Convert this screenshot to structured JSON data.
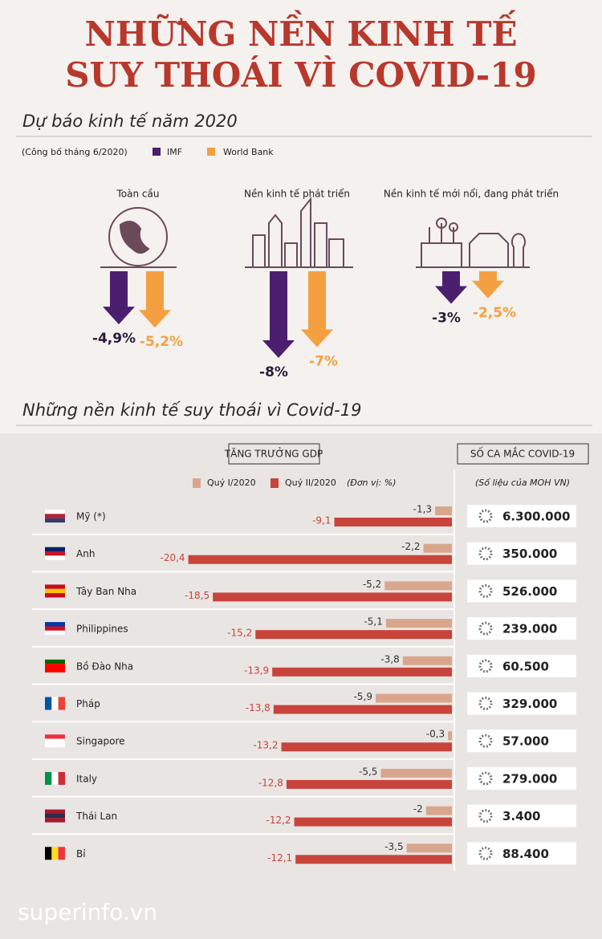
{
  "header": {
    "title_lines": [
      "NHỮNG NỀN KINH TẾ",
      "SUY THOÁI VÌ COVID-19"
    ]
  },
  "forecast": {
    "title": "Dự báo kinh tế năm 2020",
    "note": "(Công bố tháng 6/2020)",
    "legend": [
      {
        "name": "IMF",
        "color": "#4b1f6e"
      },
      {
        "name": "World Bank",
        "color": "#f5a040"
      }
    ],
    "groups": [
      {
        "label": "Toàn cầu",
        "values": [
          -4.9,
          -5.2
        ],
        "value_labels": [
          "-4,9%",
          "-5,2%"
        ]
      },
      {
        "label": "Nền kinh tế phát triển",
        "values": [
          -8,
          -7
        ],
        "value_labels": [
          "-8%",
          "-7%"
        ]
      },
      {
        "label": "Nền kinh tế mới nổi, đang phát triển",
        "values": [
          -3,
          -2.5
        ],
        "value_labels": [
          "-3%",
          "-2,5%"
        ]
      }
    ]
  },
  "chart_data": {
    "type": "bar",
    "orientation": "horizontal",
    "title": "Những nền kinh tế suy thoái vì Covid-19",
    "subtitle": "TĂNG TRƯỞNG GDP",
    "unit_note": "(Đơn vị: %)",
    "categories": [
      "Mỹ (*)",
      "Anh",
      "Tây Ban Nha",
      "Philippines",
      "Bồ Đào Nha",
      "Pháp",
      "Singapore",
      "Italy",
      "Thái Lan",
      "Bỉ"
    ],
    "series": [
      {
        "name": "Quý I/2020",
        "color": "#d9a68d",
        "values": [
          -1.3,
          -2.2,
          -5.2,
          -5.1,
          -3.8,
          -5.9,
          -0.3,
          -5.5,
          -2,
          -3.5
        ],
        "value_labels": [
          "-1,3",
          "-2,2",
          "-5,2",
          "-5,1",
          "-3,8",
          "-5,9",
          "-0,3",
          "-5,5",
          "-2",
          "-3,5"
        ]
      },
      {
        "name": "Quý II/2020",
        "color": "#c8443a",
        "values": [
          -9.1,
          -20.4,
          -18.5,
          -15.2,
          -13.9,
          -13.8,
          -13.2,
          -12.8,
          -12.2,
          -12.1
        ],
        "value_labels": [
          "-9,1",
          "-20,4",
          "-18,5",
          "-15,2",
          "-13,9",
          "-13,8",
          "-13,2",
          "-12,8",
          "-12,2",
          "-12,1"
        ]
      }
    ]
  },
  "cases": {
    "title": "SỐ CA MẮC COVID-19",
    "note": "(Số liệu của MOH VN)",
    "rows": [
      "6.300.000",
      "350.000",
      "526.000",
      "239.000",
      "60.500",
      "329.000",
      "57.000",
      "279.000",
      "3.400",
      "88.400"
    ]
  },
  "footer": {
    "site": "superinfo.vn"
  }
}
